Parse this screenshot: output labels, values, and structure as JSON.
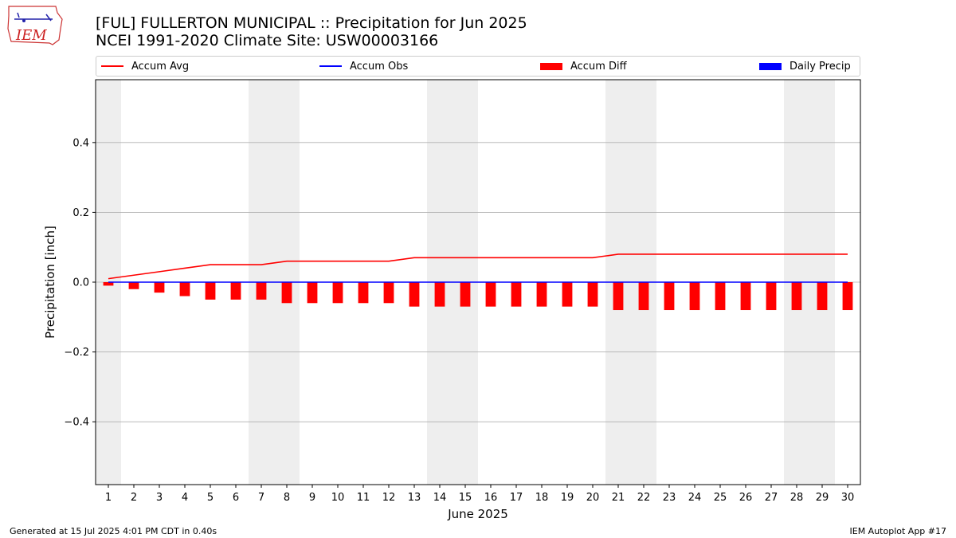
{
  "header": {
    "logo_text": "IEM",
    "title_line1": "[FUL] FULLERTON MUNICIPAL :: Precipitation for Jun 2025",
    "title_line2": "NCEI 1991-2020 Climate Site: USW00003166"
  },
  "legend": {
    "placement": "top",
    "items": [
      {
        "label": "Accum Avg",
        "kind": "line",
        "color": "#ff0000"
      },
      {
        "label": "Accum Obs",
        "kind": "line",
        "color": "#0000ff"
      },
      {
        "label": "Accum Diff",
        "kind": "box",
        "color": "#ff0000"
      },
      {
        "label": "Daily Precip",
        "kind": "box",
        "color": "#0000ff"
      }
    ]
  },
  "footer": {
    "left": "Generated at 15 Jul 2025 4:01 PM CDT in 0.40s",
    "right": "IEM Autoplot App #17"
  },
  "chart_data": {
    "type": "bar",
    "xlabel": "June 2025",
    "ylabel": "Precipitation [inch]",
    "ylim": [
      -0.58,
      0.58
    ],
    "yticks": [
      -0.4,
      -0.2,
      0.0,
      0.2,
      0.4
    ],
    "ytick_labels": [
      "−0.4",
      "−0.2",
      "0.0",
      "0.2",
      "0.4"
    ],
    "grid": true,
    "weekend_shading_color": "#eeeeee",
    "weekend_days": [
      1,
      7,
      8,
      14,
      15,
      21,
      22,
      28,
      29
    ],
    "x": [
      1,
      2,
      3,
      4,
      5,
      6,
      7,
      8,
      9,
      10,
      11,
      12,
      13,
      14,
      15,
      16,
      17,
      18,
      19,
      20,
      21,
      22,
      23,
      24,
      25,
      26,
      27,
      28,
      29,
      30
    ],
    "series": [
      {
        "name": "Accum Avg",
        "type": "line",
        "color": "#ff0000",
        "values": [
          0.01,
          0.02,
          0.03,
          0.04,
          0.05,
          0.05,
          0.05,
          0.06,
          0.06,
          0.06,
          0.06,
          0.06,
          0.07,
          0.07,
          0.07,
          0.07,
          0.07,
          0.07,
          0.07,
          0.07,
          0.08,
          0.08,
          0.08,
          0.08,
          0.08,
          0.08,
          0.08,
          0.08,
          0.08,
          0.08
        ]
      },
      {
        "name": "Accum Obs",
        "type": "line",
        "color": "#0000ff",
        "values": [
          0,
          0,
          0,
          0,
          0,
          0,
          0,
          0,
          0,
          0,
          0,
          0,
          0,
          0,
          0,
          0,
          0,
          0,
          0,
          0,
          0,
          0,
          0,
          0,
          0,
          0,
          0,
          0,
          0,
          0
        ]
      },
      {
        "name": "Accum Diff",
        "type": "bar",
        "color": "#ff0000",
        "values": [
          -0.01,
          -0.02,
          -0.03,
          -0.04,
          -0.05,
          -0.05,
          -0.05,
          -0.06,
          -0.06,
          -0.06,
          -0.06,
          -0.06,
          -0.07,
          -0.07,
          -0.07,
          -0.07,
          -0.07,
          -0.07,
          -0.07,
          -0.07,
          -0.08,
          -0.08,
          -0.08,
          -0.08,
          -0.08,
          -0.08,
          -0.08,
          -0.08,
          -0.08,
          -0.08
        ]
      },
      {
        "name": "Daily Precip",
        "type": "bar",
        "color": "#0000ff",
        "values": [
          0,
          0,
          0,
          0,
          0,
          0,
          0,
          0,
          0,
          0,
          0,
          0,
          0,
          0,
          0,
          0,
          0,
          0,
          0,
          0,
          0,
          0,
          0,
          0,
          0,
          0,
          0,
          0,
          0,
          0
        ]
      }
    ]
  }
}
